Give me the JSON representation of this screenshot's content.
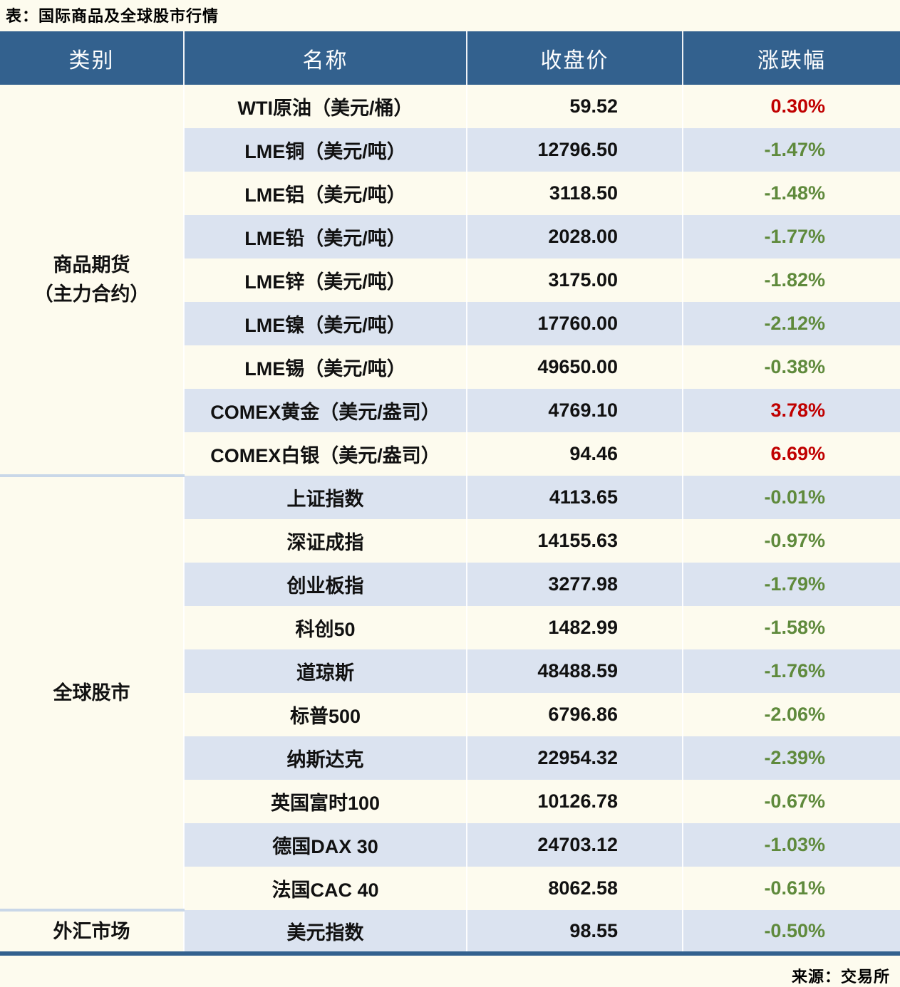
{
  "title": "表：国际商品及全球股市行情",
  "source": "来源：交易所",
  "colors": {
    "page_bg": "#FDFBEE",
    "header_bg": "#33618E",
    "header_text": "#FFFFFF",
    "row_alt_bg": "#DBE3F0",
    "section_divider": "#C9D7E8",
    "bottom_border": "#33618E",
    "up": "#C00000",
    "down": "#5F8A3C",
    "text": "#111111"
  },
  "chart_data": {
    "type": "table",
    "title": "表：国际商品及全球股市行情",
    "columns": [
      "类别",
      "名称",
      "收盘价",
      "涨跌幅"
    ],
    "sections": [
      {
        "category_lines": [
          "商品期货",
          "（主力合约）"
        ],
        "rows": [
          {
            "name": "WTI原油（美元/桶）",
            "close": "59.52",
            "change": "0.30%",
            "direction": "up"
          },
          {
            "name": "LME铜（美元/吨）",
            "close": "12796.50",
            "change": "-1.47%",
            "direction": "down"
          },
          {
            "name": "LME铝（美元/吨）",
            "close": "3118.50",
            "change": "-1.48%",
            "direction": "down"
          },
          {
            "name": "LME铅（美元/吨）",
            "close": "2028.00",
            "change": "-1.77%",
            "direction": "down"
          },
          {
            "name": "LME锌（美元/吨）",
            "close": "3175.00",
            "change": "-1.82%",
            "direction": "down"
          },
          {
            "name": "LME镍（美元/吨）",
            "close": "17760.00",
            "change": "-2.12%",
            "direction": "down"
          },
          {
            "name": "LME锡（美元/吨）",
            "close": "49650.00",
            "change": "-0.38%",
            "direction": "down"
          },
          {
            "name": "COMEX黄金（美元/盎司）",
            "close": "4769.10",
            "change": "3.78%",
            "direction": "up"
          },
          {
            "name": "COMEX白银（美元/盎司）",
            "close": "94.46",
            "change": "6.69%",
            "direction": "up"
          }
        ]
      },
      {
        "category_lines": [
          "全球股市"
        ],
        "rows": [
          {
            "name": "上证指数",
            "close": "4113.65",
            "change": "-0.01%",
            "direction": "down"
          },
          {
            "name": "深证成指",
            "close": "14155.63",
            "change": "-0.97%",
            "direction": "down"
          },
          {
            "name": "创业板指",
            "close": "3277.98",
            "change": "-1.79%",
            "direction": "down"
          },
          {
            "name": "科创50",
            "close": "1482.99",
            "change": "-1.58%",
            "direction": "down"
          },
          {
            "name": "道琼斯",
            "close": "48488.59",
            "change": "-1.76%",
            "direction": "down"
          },
          {
            "name": "标普500",
            "close": "6796.86",
            "change": "-2.06%",
            "direction": "down"
          },
          {
            "name": "纳斯达克",
            "close": "22954.32",
            "change": "-2.39%",
            "direction": "down"
          },
          {
            "name": "英国富时100",
            "close": "10126.78",
            "change": "-0.67%",
            "direction": "down"
          },
          {
            "name": "德国DAX 30",
            "close": "24703.12",
            "change": "-1.03%",
            "direction": "down"
          },
          {
            "name": "法国CAC 40",
            "close": "8062.58",
            "change": "-0.61%",
            "direction": "down"
          }
        ]
      },
      {
        "category_lines": [
          "外汇市场"
        ],
        "rows": [
          {
            "name": "美元指数",
            "close": "98.55",
            "change": "-0.50%",
            "direction": "down"
          }
        ]
      }
    ]
  }
}
